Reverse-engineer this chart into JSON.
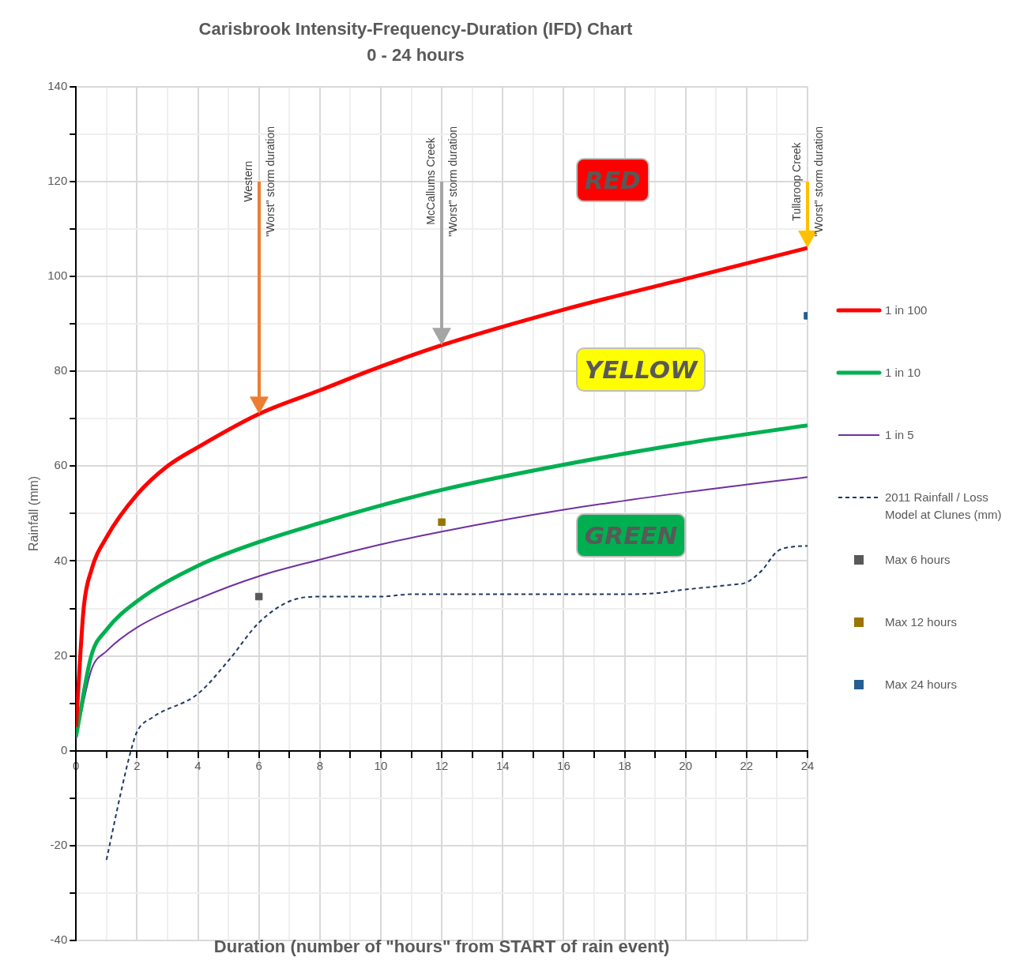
{
  "chart_data": {
    "type": "line",
    "title": "Carisbrook Intensity-Frequency-Duration (IFD) Chart",
    "subtitle": "0 - 24 hours",
    "xlabel": "Duration (number of \"hours\" from START of rain event)",
    "ylabel": "Rainfall (mm)",
    "xlim": [
      0,
      24
    ],
    "xticks": [
      0,
      {
        "value": 1,
        "label": null
      },
      2,
      {
        "value": 3,
        "label": null
      },
      4,
      {
        "value": 5,
        "label": null
      },
      6,
      {
        "value": 7,
        "label": null
      },
      8,
      {
        "value": 9,
        "label": null
      },
      10,
      {
        "value": 11,
        "label": null
      },
      12,
      {
        "value": 13,
        "label": null
      },
      14,
      {
        "value": 15,
        "label": null
      },
      16,
      {
        "value": 17,
        "label": null
      },
      18,
      {
        "value": 19,
        "label": null
      },
      20,
      {
        "value": 21,
        "label": null
      },
      22,
      {
        "value": 23,
        "label": null
      },
      24
    ],
    "ylim": [
      -40,
      140
    ],
    "yticks": [
      -40,
      {
        "value": -30,
        "label": null
      },
      -20,
      {
        "value": -10,
        "label": null
      },
      0,
      {
        "value": 10,
        "label": null
      },
      20,
      {
        "value": 30,
        "label": null
      },
      40,
      {
        "value": 50,
        "label": null
      },
      60,
      {
        "value": 70,
        "label": null
      },
      80,
      {
        "value": 90,
        "label": null
      },
      100,
      {
        "value": 110,
        "label": null
      },
      120,
      {
        "value": 130,
        "label": null
      },
      140
    ],
    "grid": true,
    "legend": "right",
    "series": [
      {
        "name": "1 in 100",
        "type": "line",
        "color": "#ff0000",
        "x": [
          0,
          0.25,
          0.5,
          1,
          2,
          3,
          4,
          6,
          8,
          10,
          12,
          16,
          20,
          24
        ],
        "values": [
          5,
          30,
          38,
          45,
          54,
          60,
          64,
          71,
          76,
          81,
          85.5,
          93,
          99.5,
          106
        ]
      },
      {
        "name": "1 in 10",
        "type": "line",
        "color": "#00b050",
        "x": [
          0,
          0.5,
          1,
          2,
          4,
          6,
          8,
          10,
          12,
          16,
          20,
          24
        ],
        "values": [
          3,
          20,
          25.5,
          31.5,
          39,
          44,
          48,
          51.7,
          55,
          60.3,
          64.8,
          68.6
        ]
      },
      {
        "name": "1 in 5",
        "type": "line",
        "color": "#7030a0",
        "x": [
          0,
          0.5,
          1,
          2,
          4,
          6,
          8,
          10,
          12,
          16,
          20,
          24
        ],
        "values": [
          2.5,
          17,
          21,
          26,
          32,
          36.8,
          40.3,
          43.5,
          46.2,
          50.8,
          54.5,
          57.7
        ]
      },
      {
        "name": "2011 Rainfall / Loss Model at Clunes (mm)",
        "type": "line",
        "line_style": "dashed",
        "color": "#1f3864",
        "x": [
          1,
          1.5,
          1.8,
          2,
          2.5,
          4,
          5,
          6,
          7,
          8,
          10,
          11,
          14,
          18,
          19,
          20,
          21.5,
          22,
          22.5,
          23,
          23.5,
          24
        ],
        "values": [
          -23,
          -8,
          0,
          4,
          7,
          12,
          19,
          27,
          31.5,
          32.5,
          32.5,
          33,
          33,
          33,
          33.2,
          34,
          35,
          35.5,
          38,
          42,
          43,
          43.2
        ]
      },
      {
        "name": "Max 6 hours",
        "type": "scatter",
        "marker": "square",
        "color": "#595959",
        "x": [
          6
        ],
        "values": [
          32.5
        ]
      },
      {
        "name": "Max 12 hours",
        "type": "scatter",
        "marker": "square",
        "color": "#9a7400",
        "x": [
          12
        ],
        "values": [
          48.2
        ]
      },
      {
        "name": "Max 24 hours",
        "type": "scatter",
        "marker": "square",
        "color": "#255e91",
        "x": [
          24
        ],
        "values": [
          91.7
        ]
      }
    ],
    "annotations": [
      "Western\n\"Worst\" storm duration",
      "McCallums Creek\n\"Worst\" storm duration",
      "Tullaroop Creek\n\"Worst\" storm duration",
      "RED",
      "YELLOW",
      "GREEN"
    ]
  }
}
